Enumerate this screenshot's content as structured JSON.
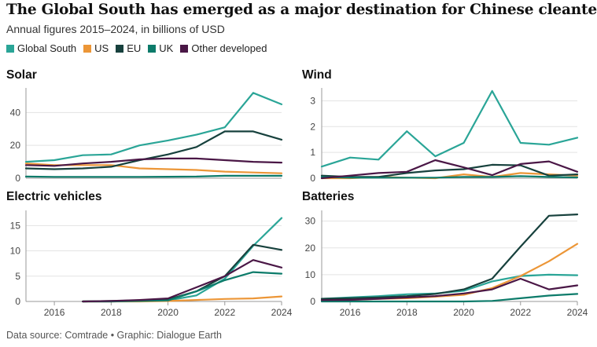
{
  "header": {
    "title": "The Global South has emerged as a major destination for Chinese cleantech",
    "subtitle": "Annual figures 2015–2024, in billions of USD"
  },
  "footer": {
    "source": "Data source: Comtrade • Graphic: Dialogue Earth"
  },
  "colors": {
    "Global South": "#2aa597",
    "US": "#ec9637",
    "EU": "#17413d",
    "UK": "#0c7b6a",
    "Other developed": "#4a1746"
  },
  "legend": [
    {
      "name": "Global South",
      "color": "#2aa597"
    },
    {
      "name": "US",
      "color": "#ec9637"
    },
    {
      "name": "EU",
      "color": "#17413d"
    },
    {
      "name": "UK",
      "color": "#0c7b6a"
    },
    {
      "name": "Other developed",
      "color": "#4a1746"
    }
  ],
  "chart_data": [
    {
      "type": "line",
      "title": "Solar",
      "x": [
        2015,
        2016,
        2017,
        2018,
        2019,
        2020,
        2021,
        2022,
        2023,
        2024
      ],
      "xlim": [
        2015,
        2024
      ],
      "ylim": [
        0,
        55
      ],
      "yticks": [
        0,
        20,
        40
      ],
      "xticks": [],
      "series": [
        {
          "name": "Global South",
          "values": [
            10,
            11,
            14,
            14.5,
            20,
            23,
            26.5,
            31,
            52,
            45
          ]
        },
        {
          "name": "US",
          "values": [
            9,
            8,
            8,
            8,
            6,
            5.5,
            5,
            4,
            3.5,
            3
          ]
        },
        {
          "name": "EU",
          "values": [
            6,
            5.5,
            6,
            7,
            11,
            14.5,
            19,
            28.5,
            28.5,
            23.5
          ]
        },
        {
          "name": "UK",
          "values": [
            1,
            0.8,
            0.8,
            0.8,
            0.8,
            0.9,
            1,
            1.5,
            1.5,
            1.5
          ]
        },
        {
          "name": "Other developed",
          "values": [
            8,
            7.5,
            9,
            10,
            11.5,
            12,
            12,
            11,
            10,
            9.5
          ]
        }
      ]
    },
    {
      "type": "line",
      "title": "Wind",
      "x": [
        2015,
        2016,
        2017,
        2018,
        2019,
        2020,
        2021,
        2022,
        2023,
        2024
      ],
      "xlim": [
        2015,
        2024
      ],
      "ylim": [
        0,
        3.5
      ],
      "yticks": [
        0,
        1,
        2,
        3
      ],
      "xticks": [],
      "series": [
        {
          "name": "Global South",
          "values": [
            0.45,
            0.8,
            0.72,
            1.82,
            0.85,
            1.37,
            3.38,
            1.37,
            1.3,
            1.57
          ]
        },
        {
          "name": "US",
          "values": [
            0,
            0,
            0.05,
            0.02,
            0,
            0.15,
            0.05,
            0.2,
            0.15,
            0.1
          ]
        },
        {
          "name": "EU",
          "values": [
            0.1,
            0.05,
            0.05,
            0.2,
            0.3,
            0.35,
            0.52,
            0.5,
            0.1,
            0.15
          ]
        },
        {
          "name": "UK",
          "values": [
            0.05,
            0.02,
            0.02,
            0.02,
            0.02,
            0.05,
            0.05,
            0.08,
            0.05,
            0.03
          ]
        },
        {
          "name": "Other developed",
          "values": [
            0,
            0.1,
            0.2,
            0.25,
            0.7,
            0.42,
            0.12,
            0.55,
            0.65,
            0.25
          ]
        }
      ]
    },
    {
      "type": "line",
      "title": "Electric vehicles",
      "x": [
        2017,
        2018,
        2019,
        2020,
        2021,
        2022,
        2023,
        2024
      ],
      "xlim": [
        2015,
        2024
      ],
      "ylim": [
        0,
        18
      ],
      "yticks": [
        0,
        5,
        10,
        15
      ],
      "xticks": [
        2016,
        2018,
        2020,
        2022,
        2024
      ],
      "series": [
        {
          "name": "Global South",
          "values": [
            0,
            0,
            0.1,
            0.2,
            1.2,
            4.5,
            11,
            16.5
          ]
        },
        {
          "name": "US",
          "values": [
            0,
            0,
            0,
            0.1,
            0.3,
            0.5,
            0.6,
            1
          ]
        },
        {
          "name": "EU",
          "values": [
            0,
            0.1,
            0.2,
            0.4,
            2,
            5,
            11.2,
            10.2
          ]
        },
        {
          "name": "UK",
          "values": [
            0,
            0,
            0.1,
            0.2,
            2,
            4.2,
            5.8,
            5.5
          ]
        },
        {
          "name": "Other developed",
          "values": [
            0,
            0.1,
            0.3,
            0.6,
            2.8,
            5,
            8.2,
            6.7
          ]
        }
      ]
    },
    {
      "type": "line",
      "title": "Batteries",
      "x": [
        2015,
        2016,
        2017,
        2018,
        2019,
        2020,
        2021,
        2022,
        2023,
        2024
      ],
      "xlim": [
        2015,
        2024
      ],
      "ylim": [
        0,
        34
      ],
      "yticks": [
        0,
        10,
        20,
        30
      ],
      "xticks": [
        2016,
        2018,
        2020,
        2022,
        2024
      ],
      "series": [
        {
          "name": "Global South",
          "values": [
            1,
            1.5,
            2,
            2.7,
            3,
            4,
            7.5,
            9.5,
            10,
            9.8
          ]
        },
        {
          "name": "US",
          "values": [
            0.5,
            0.6,
            1,
            1.2,
            1.8,
            2.5,
            5,
            9.5,
            15,
            21.5
          ]
        },
        {
          "name": "EU",
          "values": [
            1,
            1.2,
            1.5,
            2,
            2.8,
            4.5,
            8.5,
            20.5,
            32,
            32.5
          ]
        },
        {
          "name": "UK",
          "values": [
            0,
            0,
            0,
            0,
            0,
            0,
            0.2,
            1.2,
            2.2,
            2.8
          ]
        },
        {
          "name": "Other developed",
          "values": [
            0.5,
            0.6,
            1,
            1.5,
            2,
            3,
            4.5,
            8.5,
            4.5,
            6
          ]
        }
      ]
    }
  ]
}
